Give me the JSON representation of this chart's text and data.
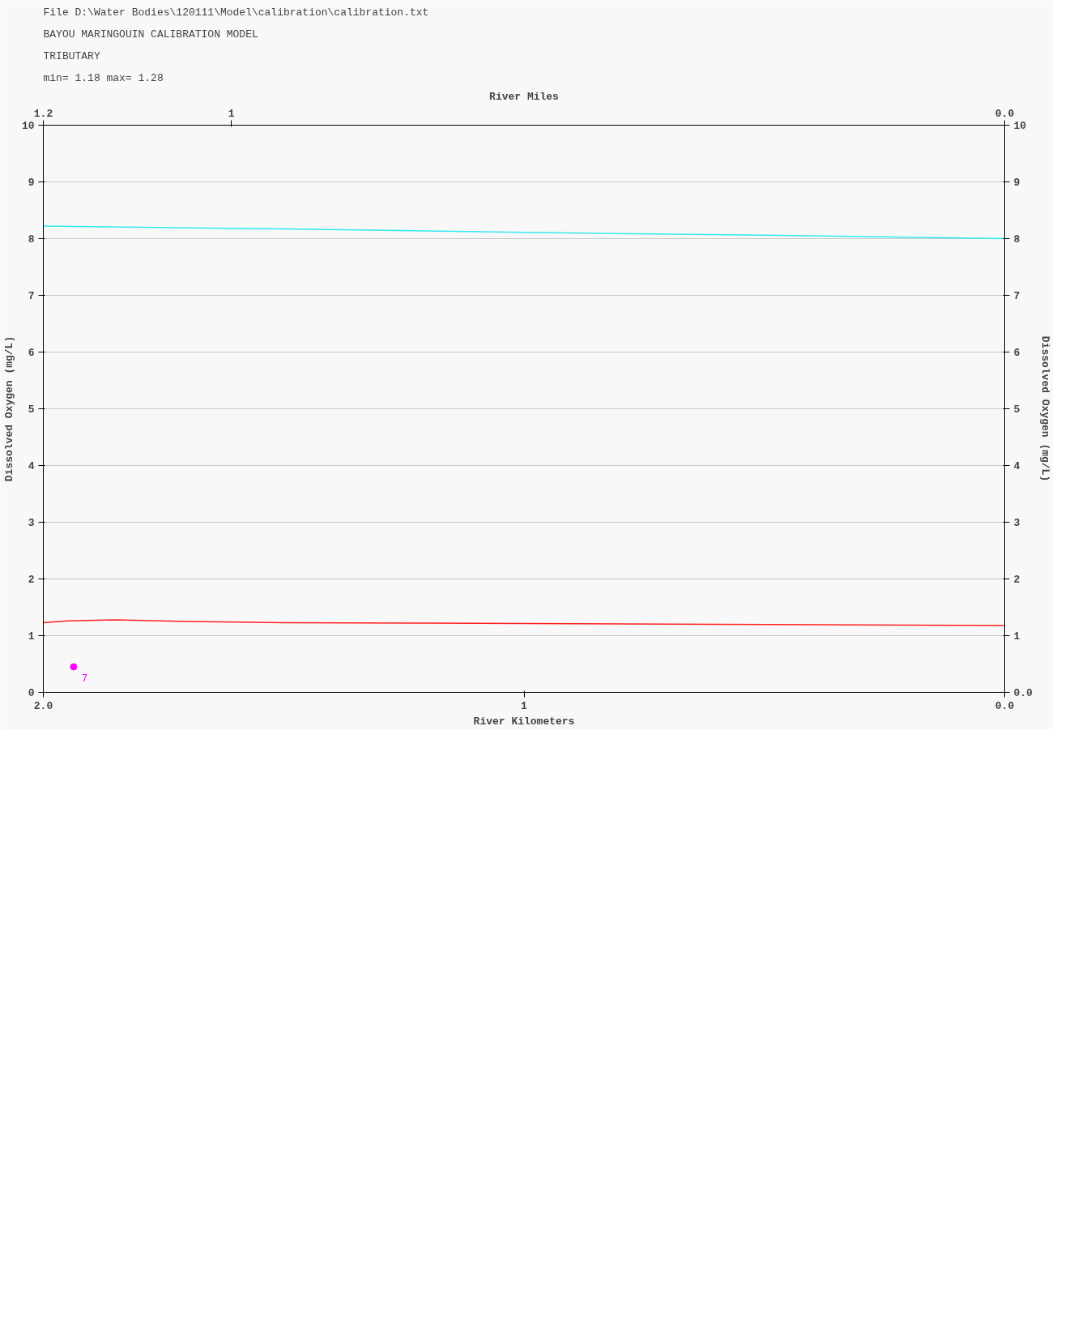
{
  "chart_data": {
    "type": "line",
    "title": "BAYOU MARINGOUIN CALIBRATION MODEL",
    "subtitle": "TRIBUTARY",
    "annotations": [
      "File D:\\Water Bodies\\120111\\Model\\calibration\\calibration.txt",
      "min=    1.18    max=    1.28",
      {
        "text": "7",
        "x": 1.937,
        "y": 0.45
      }
    ],
    "xlabel": "River Kilometers",
    "x2label": "River Miles",
    "ylabel": "Dissolved Oxygen (mg/L)",
    "y2label": "Dissolved Oxygen (mg/L)",
    "xlim": [
      2.0,
      0.0
    ],
    "xticks": [
      {
        "value": 2.0,
        "label": "2.0"
      },
      1,
      {
        "value": 0.0,
        "label": "0.0"
      }
    ],
    "x2lim": [
      1.243,
      0.0
    ],
    "x2ticks": [
      {
        "value": 1.243,
        "label": "1.2"
      },
      1,
      {
        "value": 0.0,
        "label": "0.0"
      }
    ],
    "ylim": [
      0,
      10
    ],
    "yticks": [
      0,
      1,
      2,
      3,
      4,
      5,
      6,
      7,
      8,
      9,
      10
    ],
    "y2lim": [
      0,
      10
    ],
    "y2ticks": [
      {
        "value": 0,
        "label": "0.0"
      },
      1,
      2,
      3,
      4,
      5,
      6,
      7,
      8,
      9,
      10
    ],
    "grid": "y",
    "series": [
      {
        "color": "#33e8f0",
        "x": [
          0,
          0.5,
          1.0,
          1.5,
          2.0
        ],
        "values": [
          8.0,
          8.06,
          8.11,
          8.17,
          8.22
        ]
      },
      {
        "color": "#ff2020",
        "x": [
          0,
          0.3,
          0.6,
          0.9,
          1.2,
          1.5,
          1.7,
          1.85,
          1.95,
          2.0
        ],
        "values": [
          1.18,
          1.19,
          1.2,
          1.21,
          1.22,
          1.23,
          1.25,
          1.28,
          1.26,
          1.23
        ]
      },
      {
        "type": "scatter",
        "marker": "circle",
        "color": "#ff00ff",
        "x": [
          1.937
        ],
        "values": [
          0.45
        ]
      }
    ]
  }
}
